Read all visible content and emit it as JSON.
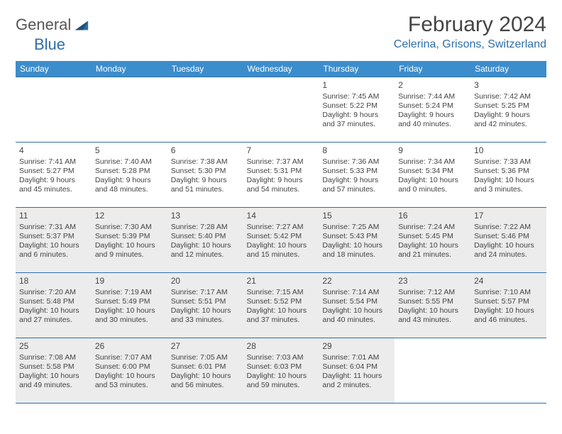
{
  "brand": {
    "name1": "General",
    "name2": "Blue",
    "color1": "#666666",
    "color2": "#2f6ea8"
  },
  "title": "February 2024",
  "location": "Celerina, Grisons, Switzerland",
  "theme": {
    "header_bg": "#3c8dcc",
    "header_fg": "#ffffff",
    "rule_color": "#2f6ea8",
    "shaded_bg": "#ececec",
    "body_bg": "#ffffff",
    "text_color": "#444444",
    "font": "Arial",
    "title_fontsize": 30,
    "location_fontsize": 16,
    "dayhead_fontsize": 12,
    "cell_fontsize": 10.5
  },
  "weekdays": [
    "Sunday",
    "Monday",
    "Tuesday",
    "Wednesday",
    "Thursday",
    "Friday",
    "Saturday"
  ],
  "weeks": [
    [
      null,
      null,
      null,
      null,
      {
        "n": "1",
        "sr": "Sunrise: 7:45 AM",
        "ss": "Sunset: 5:22 PM",
        "d1": "Daylight: 9 hours",
        "d2": "and 37 minutes."
      },
      {
        "n": "2",
        "sr": "Sunrise: 7:44 AM",
        "ss": "Sunset: 5:24 PM",
        "d1": "Daylight: 9 hours",
        "d2": "and 40 minutes."
      },
      {
        "n": "3",
        "sr": "Sunrise: 7:42 AM",
        "ss": "Sunset: 5:25 PM",
        "d1": "Daylight: 9 hours",
        "d2": "and 42 minutes."
      }
    ],
    [
      {
        "n": "4",
        "sr": "Sunrise: 7:41 AM",
        "ss": "Sunset: 5:27 PM",
        "d1": "Daylight: 9 hours",
        "d2": "and 45 minutes."
      },
      {
        "n": "5",
        "sr": "Sunrise: 7:40 AM",
        "ss": "Sunset: 5:28 PM",
        "d1": "Daylight: 9 hours",
        "d2": "and 48 minutes."
      },
      {
        "n": "6",
        "sr": "Sunrise: 7:38 AM",
        "ss": "Sunset: 5:30 PM",
        "d1": "Daylight: 9 hours",
        "d2": "and 51 minutes."
      },
      {
        "n": "7",
        "sr": "Sunrise: 7:37 AM",
        "ss": "Sunset: 5:31 PM",
        "d1": "Daylight: 9 hours",
        "d2": "and 54 minutes."
      },
      {
        "n": "8",
        "sr": "Sunrise: 7:36 AM",
        "ss": "Sunset: 5:33 PM",
        "d1": "Daylight: 9 hours",
        "d2": "and 57 minutes."
      },
      {
        "n": "9",
        "sr": "Sunrise: 7:34 AM",
        "ss": "Sunset: 5:34 PM",
        "d1": "Daylight: 10 hours",
        "d2": "and 0 minutes."
      },
      {
        "n": "10",
        "sr": "Sunrise: 7:33 AM",
        "ss": "Sunset: 5:36 PM",
        "d1": "Daylight: 10 hours",
        "d2": "and 3 minutes."
      }
    ],
    [
      {
        "n": "11",
        "sr": "Sunrise: 7:31 AM",
        "ss": "Sunset: 5:37 PM",
        "d1": "Daylight: 10 hours",
        "d2": "and 6 minutes.",
        "shaded": true
      },
      {
        "n": "12",
        "sr": "Sunrise: 7:30 AM",
        "ss": "Sunset: 5:39 PM",
        "d1": "Daylight: 10 hours",
        "d2": "and 9 minutes.",
        "shaded": true
      },
      {
        "n": "13",
        "sr": "Sunrise: 7:28 AM",
        "ss": "Sunset: 5:40 PM",
        "d1": "Daylight: 10 hours",
        "d2": "and 12 minutes.",
        "shaded": true
      },
      {
        "n": "14",
        "sr": "Sunrise: 7:27 AM",
        "ss": "Sunset: 5:42 PM",
        "d1": "Daylight: 10 hours",
        "d2": "and 15 minutes.",
        "shaded": true
      },
      {
        "n": "15",
        "sr": "Sunrise: 7:25 AM",
        "ss": "Sunset: 5:43 PM",
        "d1": "Daylight: 10 hours",
        "d2": "and 18 minutes.",
        "shaded": true
      },
      {
        "n": "16",
        "sr": "Sunrise: 7:24 AM",
        "ss": "Sunset: 5:45 PM",
        "d1": "Daylight: 10 hours",
        "d2": "and 21 minutes.",
        "shaded": true
      },
      {
        "n": "17",
        "sr": "Sunrise: 7:22 AM",
        "ss": "Sunset: 5:46 PM",
        "d1": "Daylight: 10 hours",
        "d2": "and 24 minutes.",
        "shaded": true
      }
    ],
    [
      {
        "n": "18",
        "sr": "Sunrise: 7:20 AM",
        "ss": "Sunset: 5:48 PM",
        "d1": "Daylight: 10 hours",
        "d2": "and 27 minutes.",
        "shaded": true
      },
      {
        "n": "19",
        "sr": "Sunrise: 7:19 AM",
        "ss": "Sunset: 5:49 PM",
        "d1": "Daylight: 10 hours",
        "d2": "and 30 minutes.",
        "shaded": true
      },
      {
        "n": "20",
        "sr": "Sunrise: 7:17 AM",
        "ss": "Sunset: 5:51 PM",
        "d1": "Daylight: 10 hours",
        "d2": "and 33 minutes.",
        "shaded": true
      },
      {
        "n": "21",
        "sr": "Sunrise: 7:15 AM",
        "ss": "Sunset: 5:52 PM",
        "d1": "Daylight: 10 hours",
        "d2": "and 37 minutes.",
        "shaded": true
      },
      {
        "n": "22",
        "sr": "Sunrise: 7:14 AM",
        "ss": "Sunset: 5:54 PM",
        "d1": "Daylight: 10 hours",
        "d2": "and 40 minutes.",
        "shaded": true
      },
      {
        "n": "23",
        "sr": "Sunrise: 7:12 AM",
        "ss": "Sunset: 5:55 PM",
        "d1": "Daylight: 10 hours",
        "d2": "and 43 minutes.",
        "shaded": true
      },
      {
        "n": "24",
        "sr": "Sunrise: 7:10 AM",
        "ss": "Sunset: 5:57 PM",
        "d1": "Daylight: 10 hours",
        "d2": "and 46 minutes.",
        "shaded": true
      }
    ],
    [
      {
        "n": "25",
        "sr": "Sunrise: 7:08 AM",
        "ss": "Sunset: 5:58 PM",
        "d1": "Daylight: 10 hours",
        "d2": "and 49 minutes.",
        "shaded": true
      },
      {
        "n": "26",
        "sr": "Sunrise: 7:07 AM",
        "ss": "Sunset: 6:00 PM",
        "d1": "Daylight: 10 hours",
        "d2": "and 53 minutes.",
        "shaded": true
      },
      {
        "n": "27",
        "sr": "Sunrise: 7:05 AM",
        "ss": "Sunset: 6:01 PM",
        "d1": "Daylight: 10 hours",
        "d2": "and 56 minutes.",
        "shaded": true
      },
      {
        "n": "28",
        "sr": "Sunrise: 7:03 AM",
        "ss": "Sunset: 6:03 PM",
        "d1": "Daylight: 10 hours",
        "d2": "and 59 minutes.",
        "shaded": true
      },
      {
        "n": "29",
        "sr": "Sunrise: 7:01 AM",
        "ss": "Sunset: 6:04 PM",
        "d1": "Daylight: 11 hours",
        "d2": "and 2 minutes.",
        "shaded": true
      },
      null,
      null
    ]
  ]
}
